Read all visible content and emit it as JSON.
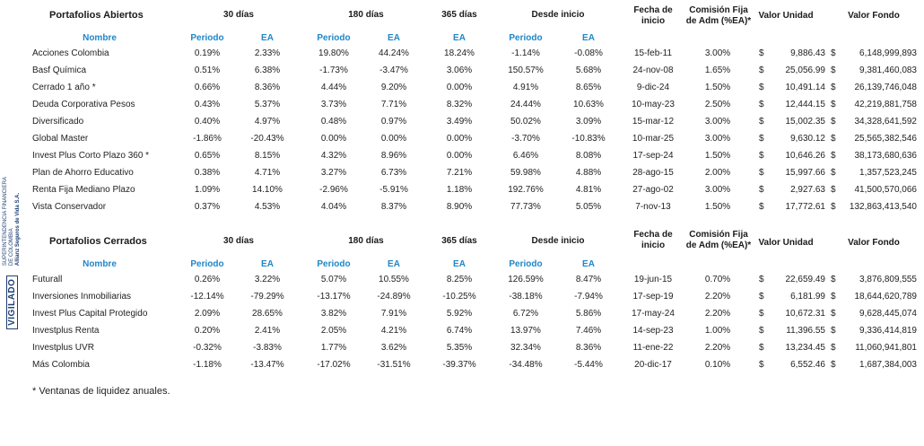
{
  "side_badge": {
    "word": "VIGILADO",
    "line1": "SUPERINTENDENCIA FINANCIERA",
    "line2": "DE COLOMBIA",
    "company": "Allianz Seguros de Vida S.A."
  },
  "open": {
    "title": "Portafolios Abiertos",
    "groups": [
      "30 días",
      "180 días",
      "365 días",
      "Desde inicio"
    ],
    "col_name": "Nombre",
    "col_periodo": "Periodo",
    "col_ea": "EA",
    "col_fecha": "Fecha de inicio",
    "col_comision": "Comisión Fija de Adm (%EA)*",
    "col_valor_unidad": "Valor Unidad",
    "col_valor_fondo": "Valor Fondo",
    "rows": [
      {
        "name": "Acciones Colombia",
        "p30": "0.19%",
        "ea30": "2.33%",
        "p180": "19.80%",
        "ea180": "44.24%",
        "ea365": "18.24%",
        "pdi": "-1.14%",
        "eadi": "-0.08%",
        "fecha": "15-feb-11",
        "com": "3.00%",
        "vu": "9,886.43",
        "vf": "6,148,999,893"
      },
      {
        "name": "Basf Química",
        "p30": "0.51%",
        "ea30": "6.38%",
        "p180": "-1.73%",
        "ea180": "-3.47%",
        "ea365": "3.06%",
        "pdi": "150.57%",
        "eadi": "5.68%",
        "fecha": "24-nov-08",
        "com": "1.65%",
        "vu": "25,056.99",
        "vf": "9,381,460,083"
      },
      {
        "name": "Cerrado 1 año *",
        "p30": "0.66%",
        "ea30": "8.36%",
        "p180": "4.44%",
        "ea180": "9.20%",
        "ea365": "0.00%",
        "pdi": "4.91%",
        "eadi": "8.65%",
        "fecha": "9-dic-24",
        "com": "1.50%",
        "vu": "10,491.14",
        "vf": "26,139,746,048"
      },
      {
        "name": "Deuda Corporativa Pesos",
        "p30": "0.43%",
        "ea30": "5.37%",
        "p180": "3.73%",
        "ea180": "7.71%",
        "ea365": "8.32%",
        "pdi": "24.44%",
        "eadi": "10.63%",
        "fecha": "10-may-23",
        "com": "2.50%",
        "vu": "12,444.15",
        "vf": "42,219,881,758"
      },
      {
        "name": "Diversificado",
        "p30": "0.40%",
        "ea30": "4.97%",
        "p180": "0.48%",
        "ea180": "0.97%",
        "ea365": "3.49%",
        "pdi": "50.02%",
        "eadi": "3.09%",
        "fecha": "15-mar-12",
        "com": "3.00%",
        "vu": "15,002.35",
        "vf": "34,328,641,592"
      },
      {
        "name": "Global Master",
        "p30": "-1.86%",
        "ea30": "-20.43%",
        "p180": "0.00%",
        "ea180": "0.00%",
        "ea365": "0.00%",
        "pdi": "-3.70%",
        "eadi": "-10.83%",
        "fecha": "10-mar-25",
        "com": "3.00%",
        "vu": "9,630.12",
        "vf": "25,565,382,546"
      },
      {
        "name": "Invest Plus Corto Plazo 360 *",
        "p30": "0.65%",
        "ea30": "8.15%",
        "p180": "4.32%",
        "ea180": "8.96%",
        "ea365": "0.00%",
        "pdi": "6.46%",
        "eadi": "8.08%",
        "fecha": "17-sep-24",
        "com": "1.50%",
        "vu": "10,646.26",
        "vf": "38,173,680,636"
      },
      {
        "name": "Plan de Ahorro Educativo",
        "p30": "0.38%",
        "ea30": "4.71%",
        "p180": "3.27%",
        "ea180": "6.73%",
        "ea365": "7.21%",
        "pdi": "59.98%",
        "eadi": "4.88%",
        "fecha": "28-ago-15",
        "com": "2.00%",
        "vu": "15,997.66",
        "vf": "1,357,523,245"
      },
      {
        "name": "Renta Fija Mediano Plazo",
        "p30": "1.09%",
        "ea30": "14.10%",
        "p180": "-2.96%",
        "ea180": "-5.91%",
        "ea365": "1.18%",
        "pdi": "192.76%",
        "eadi": "4.81%",
        "fecha": "27-ago-02",
        "com": "3.00%",
        "vu": "2,927.63",
        "vf": "41,500,570,066"
      },
      {
        "name": "Vista Conservador",
        "p30": "0.37%",
        "ea30": "4.53%",
        "p180": "4.04%",
        "ea180": "8.37%",
        "ea365": "8.90%",
        "pdi": "77.73%",
        "eadi": "5.05%",
        "fecha": "7-nov-13",
        "com": "1.50%",
        "vu": "17,772.61",
        "vf": "132,863,413,540"
      }
    ]
  },
  "closed": {
    "title": "Portafolios Cerrados",
    "groups": [
      "30 días",
      "180 días",
      "365 días",
      "Desde inicio"
    ],
    "col_name": "Nombre",
    "col_periodo": "Periodo",
    "col_ea": "EA",
    "col_fecha": "Fecha de inicio",
    "col_comision": "Comisión Fija de Adm (%EA)*",
    "col_valor_unidad": "Valor Unidad",
    "col_valor_fondo": "Valor Fondo",
    "rows": [
      {
        "name": "Futurall",
        "p30": "0.26%",
        "ea30": "3.22%",
        "p180": "5.07%",
        "ea180": "10.55%",
        "ea365": "8.25%",
        "pdi": "126.59%",
        "eadi": "8.47%",
        "fecha": "19-jun-15",
        "com": "0.70%",
        "vu": "22,659.49",
        "vf": "3,876,809,555"
      },
      {
        "name": "Inversiones Inmobiliarias",
        "p30": "-12.14%",
        "ea30": "-79.29%",
        "p180": "-13.17%",
        "ea180": "-24.89%",
        "ea365": "-10.25%",
        "pdi": "-38.18%",
        "eadi": "-7.94%",
        "fecha": "17-sep-19",
        "com": "2.20%",
        "vu": "6,181.99",
        "vf": "18,644,620,789"
      },
      {
        "name": "Invest Plus Capital Protegido",
        "p30": "2.09%",
        "ea30": "28.65%",
        "p180": "3.82%",
        "ea180": "7.91%",
        "ea365": "5.92%",
        "pdi": "6.72%",
        "eadi": "5.86%",
        "fecha": "17-may-24",
        "com": "2.20%",
        "vu": "10,672.31",
        "vf": "9,628,445,074"
      },
      {
        "name": "Investplus Renta",
        "p30": "0.20%",
        "ea30": "2.41%",
        "p180": "2.05%",
        "ea180": "4.21%",
        "ea365": "6.74%",
        "pdi": "13.97%",
        "eadi": "7.46%",
        "fecha": "14-sep-23",
        "com": "1.00%",
        "vu": "11,396.55",
        "vf": "9,336,414,819"
      },
      {
        "name": "Investplus UVR",
        "p30": "-0.32%",
        "ea30": "-3.83%",
        "p180": "1.77%",
        "ea180": "3.62%",
        "ea365": "5.35%",
        "pdi": "32.34%",
        "eadi": "8.36%",
        "fecha": "11-ene-22",
        "com": "2.20%",
        "vu": "13,234.45",
        "vf": "11,060,941,801"
      },
      {
        "name": "Más Colombia",
        "p30": "-1.18%",
        "ea30": "-13.47%",
        "p180": "-17.02%",
        "ea180": "-31.51%",
        "ea365": "-39.37%",
        "pdi": "-34.48%",
        "eadi": "-5.44%",
        "fecha": "20-dic-17",
        "com": "0.10%",
        "vu": "6,552.46",
        "vf": "1,687,384,003"
      }
    ]
  },
  "currency_symbol": "$",
  "footnote": "* Ventanas de liquidez anuales."
}
